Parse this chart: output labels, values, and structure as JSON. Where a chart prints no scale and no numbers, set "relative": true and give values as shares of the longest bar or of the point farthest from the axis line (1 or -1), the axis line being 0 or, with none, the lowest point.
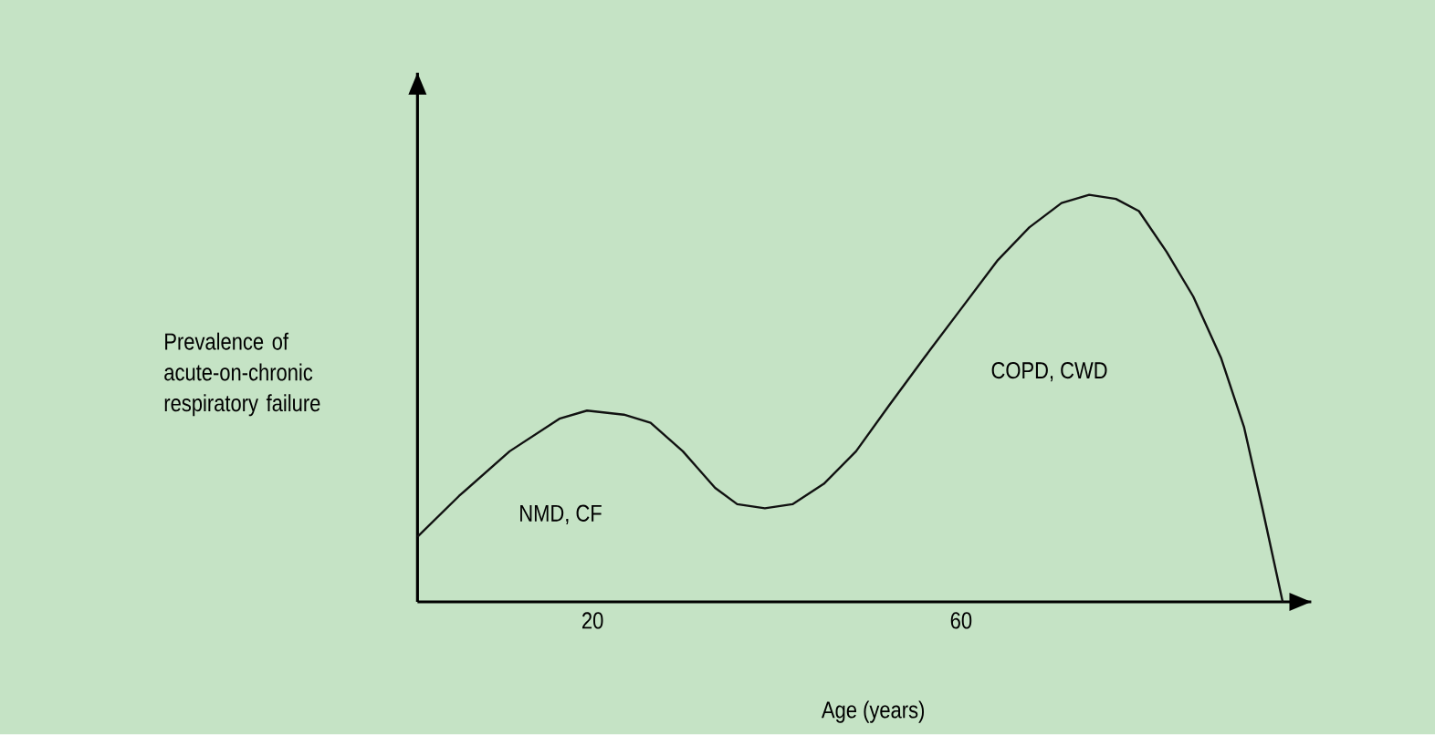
{
  "chart_data": {
    "type": "line",
    "relative": true,
    "xlabel": "Age (years)",
    "ylabel": "Prevalence of acute-on-chronic respiratory failure",
    "x": [
      1,
      5.5,
      11,
      16.4,
      19.4,
      23.4,
      26.3,
      29.8,
      33.3,
      35.7,
      38.7,
      41.7,
      45.1,
      48.6,
      52.1,
      56,
      60,
      64,
      67.4,
      70.9,
      73.9,
      76.8,
      79.3,
      82.3,
      85.2,
      88.2,
      90.7,
      92.7,
      94.9
    ],
    "values": [
      0.16,
      0.26,
      0.37,
      0.45,
      0.47,
      0.46,
      0.44,
      0.37,
      0.28,
      0.24,
      0.23,
      0.24,
      0.29,
      0.37,
      0.48,
      0.6,
      0.72,
      0.84,
      0.92,
      0.98,
      1.0,
      0.99,
      0.96,
      0.86,
      0.75,
      0.6,
      0.43,
      0.23,
      0
    ],
    "color": "#111111",
    "xlim": [
      1,
      98
    ],
    "xticks": [
      20,
      60
    ],
    "tick_labels": "x",
    "marker": "none",
    "line_style": "solid",
    "annotations": [
      "NMD, CF",
      "COPD, CWD"
    ]
  }
}
